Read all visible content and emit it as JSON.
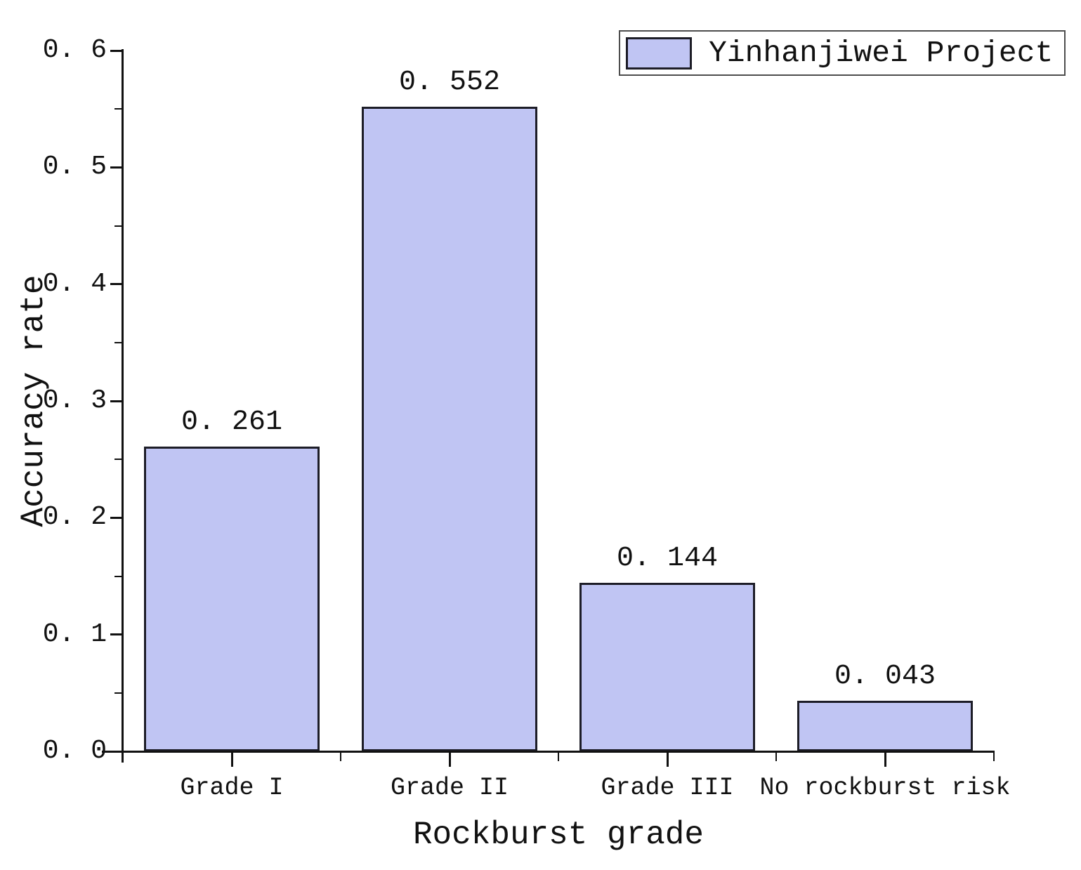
{
  "legend": {
    "label": "Yinhanjiwei Project"
  },
  "chart_data": {
    "type": "bar",
    "title": "",
    "categories": [
      "Grade I",
      "Grade II",
      "Grade III",
      "No rockburst risk"
    ],
    "values": [
      0.261,
      0.552,
      0.144,
      0.043
    ],
    "value_labels": [
      "0. 261",
      "0. 552",
      "0. 144",
      "0. 043"
    ],
    "series": [
      {
        "name": "Yinhanjiwei Project",
        "values": [
          0.261,
          0.552,
          0.144,
          0.043
        ]
      }
    ],
    "xlabel": "Rockburst grade",
    "ylabel": "Accuracy rate",
    "ylim": [
      0.0,
      0.6
    ],
    "y_major_step": 0.1,
    "y_minor_step": 0.05,
    "y_tick_labels": [
      "0. 0",
      "0. 1",
      "0. 2",
      "0. 3",
      "0. 4",
      "0. 5",
      "0. 6"
    ],
    "grid": false,
    "legend_position": "top-right",
    "colors": {
      "bar_fill": "#c0c5f3",
      "bar_border": "#1d1d27",
      "axis": "#111111",
      "text": "#111111",
      "legend_border": "#4d4d4d"
    }
  }
}
